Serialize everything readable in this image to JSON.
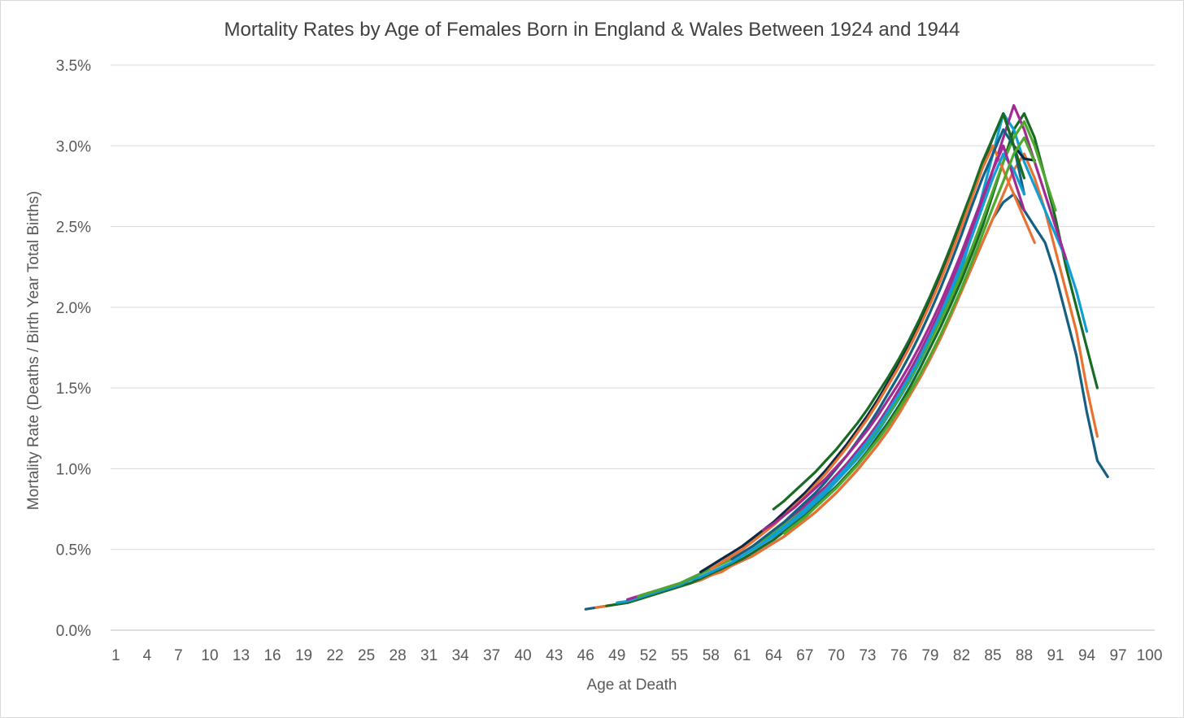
{
  "chart_data": {
    "type": "line",
    "title": "Mortality Rates by Age of Females Born in England & Wales Between 1924 and 1944",
    "xlabel": "Age at Death",
    "ylabel": "Mortality Rate (Deaths / Birth Year Total Births)",
    "x_categories": [
      1,
      2,
      3,
      4,
      5,
      6,
      7,
      8,
      9,
      10,
      11,
      12,
      13,
      14,
      15,
      16,
      17,
      18,
      19,
      20,
      21,
      22,
      23,
      24,
      25,
      26,
      27,
      28,
      29,
      30,
      31,
      32,
      33,
      34,
      35,
      36,
      37,
      38,
      39,
      40,
      41,
      42,
      43,
      44,
      45,
      46,
      47,
      48,
      49,
      50,
      51,
      52,
      53,
      54,
      55,
      56,
      57,
      58,
      59,
      60,
      61,
      62,
      63,
      64,
      65,
      66,
      67,
      68,
      69,
      70,
      71,
      72,
      73,
      74,
      75,
      76,
      77,
      78,
      79,
      80,
      81,
      82,
      83,
      84,
      85,
      86,
      87,
      88,
      89,
      90,
      91,
      92,
      93,
      94,
      95,
      96,
      97,
      98,
      99,
      100
    ],
    "x_tick_labels": [
      "1",
      "4",
      "7",
      "10",
      "13",
      "16",
      "19",
      "22",
      "25",
      "28",
      "31",
      "34",
      "37",
      "40",
      "43",
      "46",
      "49",
      "52",
      "55",
      "58",
      "61",
      "64",
      "67",
      "70",
      "73",
      "76",
      "79",
      "82",
      "85",
      "88",
      "91",
      "94",
      "97",
      "100"
    ],
    "y_tick_labels": [
      "0.0%",
      "0.5%",
      "1.0%",
      "1.5%",
      "2.0%",
      "2.5%",
      "3.0%",
      "3.5%"
    ],
    "ylim": [
      0,
      3.5
    ],
    "y_unit": "percent",
    "grid": "horizontal",
    "legend": "none",
    "series": [
      {
        "color": "#156082",
        "start_age": 46,
        "values": [
          0.13,
          0.14,
          0.15,
          0.16,
          0.17,
          0.19,
          0.21,
          0.23,
          0.25,
          0.27,
          0.29,
          0.31,
          0.34,
          0.37,
          0.4,
          0.43,
          0.46,
          0.5,
          0.54,
          0.58,
          0.63,
          0.68,
          0.73,
          0.79,
          0.85,
          0.92,
          0.99,
          1.07,
          1.15,
          1.24,
          1.34,
          1.45,
          1.56,
          1.68,
          1.81,
          1.95,
          2.1,
          2.25,
          2.4,
          2.55,
          2.65,
          2.7,
          2.6,
          2.5,
          2.4,
          2.2,
          1.95,
          1.7,
          1.35,
          1.05,
          0.95
        ]
      },
      {
        "color": "#E97132",
        "start_age": 47,
        "values": [
          0.14,
          0.15,
          0.16,
          0.17,
          0.19,
          0.21,
          0.23,
          0.25,
          0.27,
          0.29,
          0.31,
          0.34,
          0.36,
          0.4,
          0.43,
          0.46,
          0.5,
          0.54,
          0.58,
          0.63,
          0.68,
          0.73,
          0.79,
          0.85,
          0.92,
          0.99,
          1.07,
          1.15,
          1.24,
          1.34,
          1.45,
          1.56,
          1.68,
          1.81,
          1.95,
          2.1,
          2.25,
          2.4,
          2.55,
          2.7,
          2.85,
          2.95,
          2.8,
          2.6,
          2.35,
          2.1,
          1.85,
          1.5,
          1.2
        ]
      },
      {
        "color": "#196B24",
        "start_age": 48,
        "values": [
          0.15,
          0.16,
          0.17,
          0.19,
          0.21,
          0.23,
          0.25,
          0.27,
          0.29,
          0.32,
          0.35,
          0.38,
          0.41,
          0.44,
          0.48,
          0.52,
          0.56,
          0.61,
          0.66,
          0.71,
          0.77,
          0.83,
          0.89,
          0.96,
          1.03,
          1.11,
          1.2,
          1.29,
          1.39,
          1.5,
          1.62,
          1.75,
          1.88,
          2.02,
          2.17,
          2.33,
          2.5,
          2.7,
          2.9,
          3.1,
          3.2,
          3.05,
          2.8,
          2.55,
          2.25,
          2.0,
          1.75,
          1.5
        ]
      },
      {
        "color": "#0F9ED5",
        "start_age": 49,
        "values": [
          0.17,
          0.18,
          0.2,
          0.22,
          0.24,
          0.26,
          0.28,
          0.31,
          0.33,
          0.36,
          0.39,
          0.42,
          0.46,
          0.5,
          0.54,
          0.58,
          0.63,
          0.68,
          0.73,
          0.79,
          0.85,
          0.92,
          0.99,
          1.06,
          1.14,
          1.23,
          1.33,
          1.43,
          1.54,
          1.66,
          1.79,
          1.93,
          2.08,
          2.24,
          2.45,
          2.7,
          2.95,
          3.2,
          3.1,
          2.9,
          2.75,
          2.6,
          2.45,
          2.3,
          2.1,
          1.85
        ]
      },
      {
        "color": "#A02B93",
        "start_age": 50,
        "values": [
          0.19,
          0.21,
          0.23,
          0.25,
          0.27,
          0.29,
          0.32,
          0.35,
          0.38,
          0.41,
          0.44,
          0.48,
          0.52,
          0.56,
          0.61,
          0.66,
          0.71,
          0.77,
          0.83,
          0.89,
          0.96,
          1.03,
          1.11,
          1.19,
          1.28,
          1.38,
          1.49,
          1.6,
          1.72,
          1.85,
          1.99,
          2.14,
          2.3,
          2.48,
          2.65,
          2.85,
          3.05,
          3.25,
          3.1,
          2.9,
          2.7,
          2.5,
          2.3
        ]
      },
      {
        "color": "#4EA72E",
        "start_age": 51,
        "values": [
          0.21,
          0.23,
          0.25,
          0.27,
          0.29,
          0.32,
          0.35,
          0.38,
          0.41,
          0.44,
          0.48,
          0.52,
          0.56,
          0.6,
          0.65,
          0.7,
          0.75,
          0.81,
          0.87,
          0.94,
          1.01,
          1.08,
          1.16,
          1.25,
          1.34,
          1.44,
          1.55,
          1.67,
          1.79,
          1.92,
          2.06,
          2.21,
          2.37,
          2.54,
          2.72,
          2.9,
          3.05,
          3.15,
          3.0,
          2.8,
          2.6
        ]
      },
      {
        "color": "#0E2841",
        "start_age": 57,
        "values": [
          0.36,
          0.4,
          0.44,
          0.48,
          0.52,
          0.57,
          0.62,
          0.67,
          0.73,
          0.79,
          0.85,
          0.92,
          0.99,
          1.07,
          1.15,
          1.24,
          1.33,
          1.43,
          1.54,
          1.65,
          1.77,
          1.9,
          2.04,
          2.19,
          2.35,
          2.52,
          2.7,
          2.88,
          3.05,
          3.2,
          3.0,
          2.92,
          2.91
        ]
      },
      {
        "color": "#E97132",
        "start_age": 58,
        "values": [
          0.38,
          0.42,
          0.46,
          0.5,
          0.55,
          0.6,
          0.65,
          0.71,
          0.77,
          0.83,
          0.9,
          0.97,
          1.05,
          1.13,
          1.22,
          1.31,
          1.41,
          1.52,
          1.63,
          1.75,
          1.88,
          2.02,
          2.17,
          2.33,
          2.5,
          2.68,
          2.86,
          3.0,
          2.85,
          2.7,
          2.55,
          2.4
        ]
      },
      {
        "color": "#156082",
        "start_age": 60,
        "values": [
          0.44,
          0.48,
          0.52,
          0.57,
          0.62,
          0.67,
          0.73,
          0.79,
          0.85,
          0.92,
          1.0,
          1.08,
          1.17,
          1.26,
          1.36,
          1.47,
          1.58,
          1.7,
          1.83,
          1.97,
          2.12,
          2.28,
          2.45,
          2.63,
          2.8,
          2.95,
          3.1,
          3.0,
          2.7
        ]
      },
      {
        "color": "#196B24",
        "start_age": 64,
        "values": [
          0.75,
          0.8,
          0.86,
          0.92,
          0.98,
          1.05,
          1.12,
          1.2,
          1.28,
          1.37,
          1.47,
          1.57,
          1.68,
          1.8,
          1.93,
          2.07,
          2.22,
          2.38,
          2.55,
          2.72,
          2.9,
          3.05,
          3.2,
          3.0,
          2.8
        ]
      },
      {
        "color": "#0F9ED5",
        "start_age": 62,
        "values": [
          0.5,
          0.54,
          0.59,
          0.64,
          0.69,
          0.75,
          0.81,
          0.87,
          0.94,
          1.01,
          1.09,
          1.17,
          1.26,
          1.36,
          1.46,
          1.57,
          1.69,
          1.82,
          1.96,
          2.11,
          2.27,
          2.44,
          2.62,
          2.8,
          2.95,
          2.85,
          2.7
        ]
      },
      {
        "color": "#A02B93",
        "start_age": 63,
        "values": [
          0.62,
          0.66,
          0.71,
          0.76,
          0.82,
          0.88,
          0.94,
          1.01,
          1.08,
          1.16,
          1.24,
          1.33,
          1.43,
          1.53,
          1.64,
          1.76,
          1.89,
          2.03,
          2.18,
          2.34,
          2.51,
          2.68,
          2.85,
          3.0,
          2.8,
          2.6
        ]
      },
      {
        "color": "#4EA72E",
        "start_age": 65,
        "values": [
          0.6,
          0.65,
          0.7,
          0.76,
          0.82,
          0.88,
          0.95,
          1.02,
          1.1,
          1.18,
          1.27,
          1.37,
          1.47,
          1.58,
          1.7,
          1.83,
          1.97,
          2.12,
          2.28,
          2.45,
          2.62,
          2.78,
          2.95,
          3.05,
          2.9
        ]
      }
    ]
  }
}
